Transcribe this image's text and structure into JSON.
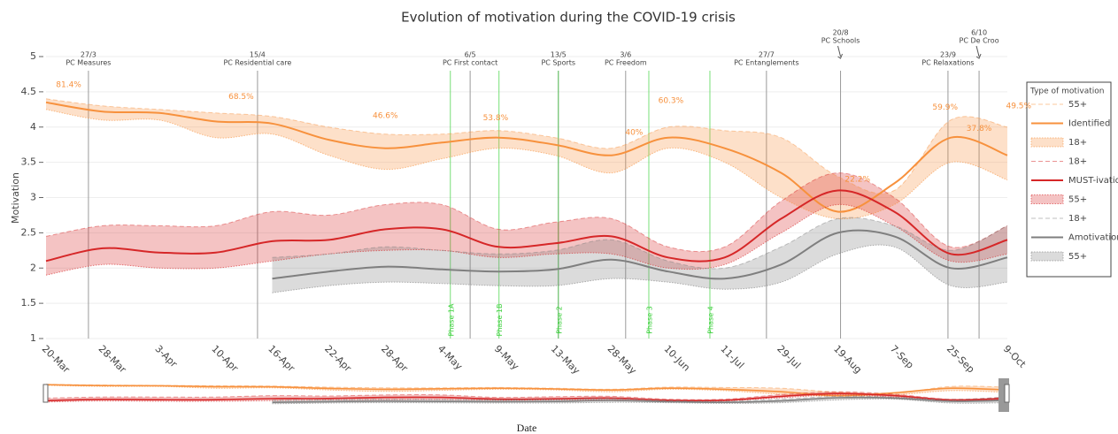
{
  "chart_data": {
    "type": "line",
    "title": "Evolution of motivation during the COVID-19 crisis",
    "x_label": "Date",
    "y_label": "Motivation",
    "legend_title": "Type of motivation",
    "legend_position": "right",
    "grid": true,
    "categories": [
      "20-Mar",
      "28-Mar",
      "3-Apr",
      "10-Apr",
      "16-Apr",
      "22-Apr",
      "28-Apr",
      "4-May",
      "9-May",
      "13-May",
      "28-May",
      "10-Jun",
      "11-Jul",
      "29-Jul",
      "19-Aug",
      "7-Sep",
      "25-Sep",
      "9-Oct"
    ],
    "ylim": [
      1,
      5
    ],
    "yticks": [
      1,
      1.5,
      2,
      2.5,
      3,
      3.5,
      4,
      4.5,
      5
    ],
    "series": [
      {
        "name": "55+",
        "color": "#f7913d",
        "style": "dash",
        "values": [
          4.4,
          4.3,
          4.25,
          4.2,
          4.15,
          4.0,
          3.9,
          3.9,
          3.95,
          3.85,
          3.7,
          4.0,
          3.95,
          3.85,
          3.3,
          3.1,
          4.1,
          4.0
        ]
      },
      {
        "name": "Identified",
        "color": "#f7913d",
        "style": "solid",
        "values": [
          4.35,
          4.22,
          4.2,
          4.08,
          4.05,
          3.82,
          3.7,
          3.78,
          3.85,
          3.75,
          3.6,
          3.85,
          3.7,
          3.35,
          2.8,
          3.2,
          3.85,
          3.6
        ]
      },
      {
        "name": "18+",
        "color": "#f7913d",
        "style": "band",
        "values": [
          4.25,
          4.1,
          4.1,
          3.85,
          3.9,
          3.6,
          3.4,
          3.55,
          3.7,
          3.6,
          3.35,
          3.7,
          3.5,
          3.0,
          2.7,
          2.9,
          3.5,
          3.25
        ]
      },
      {
        "name": "18+",
        "color": "#d62728",
        "style": "dash",
        "values": [
          2.45,
          2.6,
          2.6,
          2.6,
          2.8,
          2.75,
          2.9,
          2.9,
          2.55,
          2.65,
          2.7,
          2.3,
          2.3,
          2.95,
          3.35,
          3.0,
          2.3,
          2.6
        ]
      },
      {
        "name": "MUST-ivation",
        "color": "#d62728",
        "style": "solid",
        "values": [
          2.1,
          2.28,
          2.22,
          2.22,
          2.38,
          2.4,
          2.55,
          2.55,
          2.3,
          2.35,
          2.45,
          2.15,
          2.15,
          2.7,
          3.1,
          2.8,
          2.2,
          2.4
        ]
      },
      {
        "name": "55+",
        "color": "#d62728",
        "style": "band",
        "values": [
          1.9,
          2.05,
          2.0,
          2.0,
          2.1,
          2.2,
          2.25,
          2.25,
          2.15,
          2.2,
          2.2,
          2.0,
          2.05,
          2.5,
          2.9,
          2.6,
          2.1,
          2.2
        ]
      },
      {
        "name": "18+",
        "color": "#7f7f7f",
        "style": "dash",
        "values": [
          null,
          null,
          null,
          null,
          2.15,
          2.2,
          2.3,
          2.25,
          2.2,
          2.25,
          2.4,
          2.1,
          2.0,
          2.3,
          2.7,
          2.6,
          2.25,
          2.6
        ]
      },
      {
        "name": "Amotivation",
        "color": "#7f7f7f",
        "style": "solid",
        "values": [
          null,
          null,
          null,
          null,
          1.85,
          1.95,
          2.02,
          1.98,
          1.95,
          1.98,
          2.12,
          1.95,
          1.85,
          2.05,
          2.5,
          2.45,
          2.0,
          2.15
        ]
      },
      {
        "name": "55+",
        "color": "#7f7f7f",
        "style": "band",
        "values": [
          null,
          null,
          null,
          null,
          1.65,
          1.75,
          1.8,
          1.78,
          1.75,
          1.75,
          1.85,
          1.8,
          1.7,
          1.8,
          2.2,
          2.3,
          1.75,
          1.8
        ]
      }
    ],
    "annotations": [
      {
        "text": "81.4%",
        "x": 0.4,
        "y": 4.6
      },
      {
        "text": "68.5%",
        "x": 3.45,
        "y": 4.43
      },
      {
        "text": "46.6%",
        "x": 6.0,
        "y": 4.16
      },
      {
        "text": "53.8%",
        "x": 7.95,
        "y": 4.13
      },
      {
        "text": "40%",
        "x": 10.4,
        "y": 3.92
      },
      {
        "text": "60.3%",
        "x": 11.05,
        "y": 4.37
      },
      {
        "text": "22.2%",
        "x": 14.35,
        "y": 3.26
      },
      {
        "text": "59.9%",
        "x": 15.9,
        "y": 4.28
      },
      {
        "text": "37.8%",
        "x": 16.5,
        "y": 3.98
      },
      {
        "text": "49.5%",
        "x": 17.2,
        "y": 4.3
      }
    ],
    "events": [
      {
        "date": "27/3",
        "label": "PC Measures",
        "x": 0.75
      },
      {
        "date": "15/4",
        "label": "PC Residential care",
        "x": 3.74
      },
      {
        "date": "6/5",
        "label": "PC First contact",
        "x": 7.5
      },
      {
        "date": "13/5",
        "label": "PC Sports",
        "x": 9.06
      },
      {
        "date": "3/6",
        "label": "PC Freedom",
        "x": 10.25
      },
      {
        "date": "27/7",
        "label": "PC Entanglements",
        "x": 12.74
      },
      {
        "date": "20/8",
        "label": "PC Schools",
        "x": 14.05,
        "arrow": true
      },
      {
        "date": "23/9",
        "label": "PC Relaxations",
        "x": 15.95
      },
      {
        "date": "6/10",
        "label": "PC De Croo",
        "x": 16.5,
        "arrow": true
      }
    ],
    "phases": [
      {
        "label": "Phase 1A",
        "x": 7.15
      },
      {
        "label": "Phase 1B",
        "x": 8.01
      },
      {
        "label": "Phase 2",
        "x": 9.06
      },
      {
        "label": "Phase 3",
        "x": 10.66
      },
      {
        "label": "Phase 4",
        "x": 11.74
      }
    ],
    "event_color": "#9a9a9a",
    "phase_color": "#3fd13f",
    "range_slider": true
  }
}
